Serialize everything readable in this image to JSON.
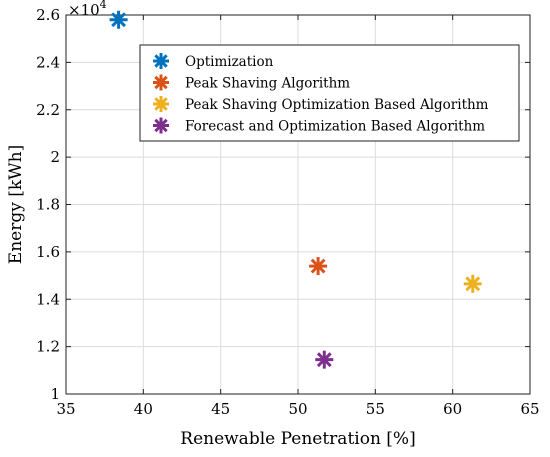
{
  "chart_data": {
    "type": "scatter",
    "title": "",
    "xlabel": "Renewable Penetration [%]",
    "ylabel": "Energy [kWh]",
    "xlim": [
      35,
      65
    ],
    "ylim": [
      10000,
      26000
    ],
    "x_ticks": [
      35,
      40,
      45,
      50,
      55,
      60,
      65
    ],
    "y_ticks": [
      10000,
      12000,
      14000,
      16000,
      18000,
      20000,
      22000,
      24000,
      26000
    ],
    "y_tick_labels": [
      "1",
      "1.2",
      "1.4",
      "1.6",
      "1.8",
      "2",
      "2.2",
      "2.4",
      "2.6"
    ],
    "y_exponent_base": "×10",
    "y_exponent_power": "4",
    "grid": true,
    "legend_position": "top-right",
    "marker": "asterisk",
    "series": [
      {
        "name": "Optimization",
        "color": "#0072BD",
        "x": [
          38.4
        ],
        "y": [
          25800
        ]
      },
      {
        "name": "Peak Shaving Algorithm",
        "color": "#D95319",
        "x": [
          51.3
        ],
        "y": [
          15400
        ]
      },
      {
        "name": "Peak Shaving Optimization Based Algorithm",
        "color": "#EDB120",
        "x": [
          61.3
        ],
        "y": [
          14650
        ]
      },
      {
        "name": "Forecast and Optimization Based Algorithm",
        "color": "#7E2F8E",
        "x": [
          51.7
        ],
        "y": [
          11450
        ]
      }
    ]
  }
}
